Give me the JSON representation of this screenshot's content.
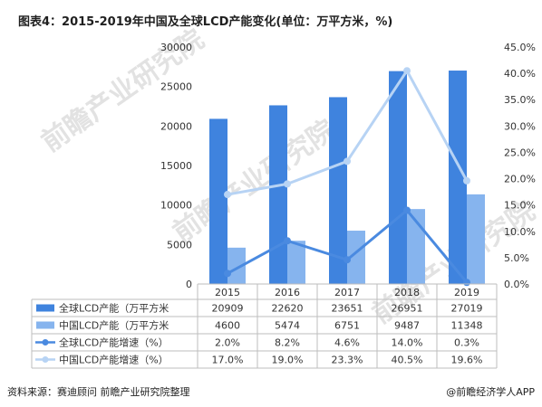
{
  "title": "图表4：2015-2019年中国及全球LCD产能变化(单位：万平方米，%)",
  "watermark_text": "前瞻产业研究院",
  "footer": {
    "source": "资料来源：赛迪顾问 前瞻产业研究院整理",
    "brand": "@前瞻经济学人APP"
  },
  "chart_data": {
    "type": "bar",
    "categories": [
      "2015",
      "2016",
      "2017",
      "2018",
      "2019"
    ],
    "series": [
      {
        "name": "全球LCD产能（万平方米",
        "kind": "bar",
        "axis": "left",
        "color": "#3f83de",
        "values": [
          20909,
          22620,
          23651,
          26951,
          27019
        ],
        "labels": [
          "20909",
          "22620",
          "23651",
          "26951",
          "27019"
        ]
      },
      {
        "name": "中国LCD产能（万平方米",
        "kind": "bar",
        "axis": "left",
        "color": "#86b4ee",
        "values": [
          4600,
          5474,
          6751,
          9487,
          11348
        ],
        "labels": [
          "4600",
          "5474",
          "6751",
          "9487",
          "11348"
        ]
      },
      {
        "name": "全球LCD产能增速（%）",
        "kind": "line",
        "axis": "right",
        "color": "#4a8ae0",
        "values": [
          2.0,
          8.2,
          4.6,
          14.0,
          0.3
        ],
        "labels": [
          "2.0%",
          "8.2%",
          "4.6%",
          "14.0%",
          "0.3%"
        ]
      },
      {
        "name": "中国LCD产能增速（%）",
        "kind": "line",
        "axis": "right",
        "color": "#b7d3f4",
        "values": [
          17.0,
          19.0,
          23.3,
          40.5,
          19.6
        ],
        "labels": [
          "17.0%",
          "19.0%",
          "23.3%",
          "40.5%",
          "19.6%"
        ]
      }
    ],
    "y_left": {
      "min": 0,
      "max": 30000,
      "ticks": [
        "0",
        "5000",
        "10000",
        "15000",
        "20000",
        "25000",
        "30000"
      ]
    },
    "y_right": {
      "min": 0,
      "max": 45,
      "ticks": [
        "0.0%",
        "5.0%",
        "10.0%",
        "15.0%",
        "20.0%",
        "25.0%",
        "30.0%",
        "35.0%",
        "40.0%",
        "45.0%"
      ]
    },
    "grid": false,
    "legend": "data-table-below"
  }
}
